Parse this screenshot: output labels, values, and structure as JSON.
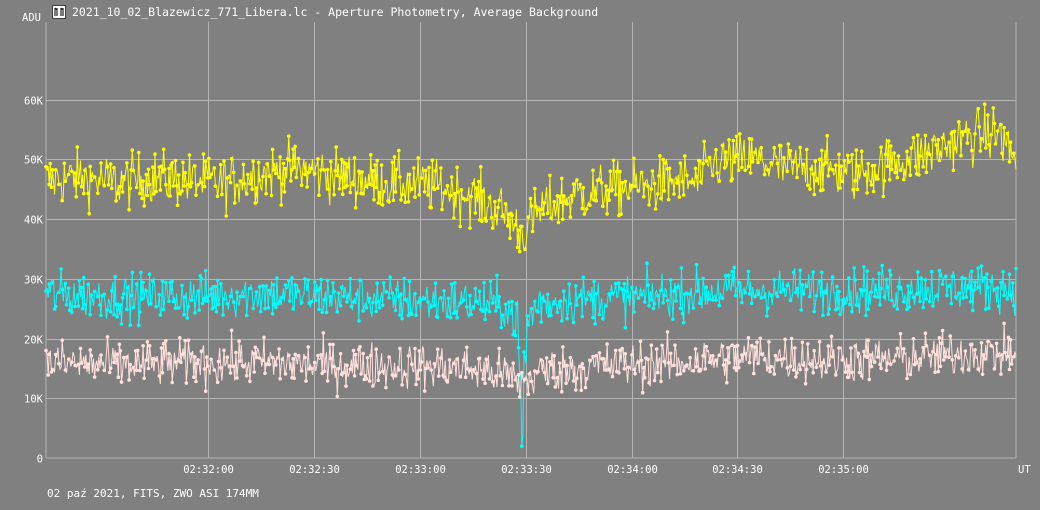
{
  "window": {
    "title": "2021_10_02_Blazewicz_771_Libera.lc - Aperture Photometry, Average Background",
    "footer": "02 paź 2021, FITS, ZWO ASI 174MM",
    "app_icon": "lightcurve-app-icon"
  },
  "colors": {
    "background": "#808080",
    "grid": "#b4b4b4",
    "text": "#ffffff",
    "series_yellow": "#ffff00",
    "series_cyan": "#00ffff",
    "series_pink": "#ffe0dc"
  },
  "chart_data": {
    "type": "line",
    "title": "2021_10_02_Blazewicz_771_Libera.lc - Aperture Photometry, Average Background",
    "xlabel": "UT",
    "ylabel": "ADU",
    "ylim": [
      0,
      73000
    ],
    "xlim": [
      "02:31:14",
      "02:35:49"
    ],
    "grid": true,
    "y_ticks": [
      {
        "value": 0,
        "label": "0"
      },
      {
        "value": 10000,
        "label": "10K"
      },
      {
        "value": 20000,
        "label": "20K"
      },
      {
        "value": 30000,
        "label": "30K"
      },
      {
        "value": 40000,
        "label": "40K"
      },
      {
        "value": 50000,
        "label": "50K"
      },
      {
        "value": 60000,
        "label": "60K"
      }
    ],
    "x_ticks": [
      {
        "value": "02:32:00",
        "label": "02:32:00"
      },
      {
        "value": "02:32:30",
        "label": "02:32:30"
      },
      {
        "value": "02:33:00",
        "label": "02:33:00"
      },
      {
        "value": "02:33:30",
        "label": "02:33:30"
      },
      {
        "value": "02:34:00",
        "label": "02:34:00"
      },
      {
        "value": "02:34:30",
        "label": "02:34:30"
      },
      {
        "value": "02:35:00",
        "label": "02:35:00"
      }
    ],
    "series": [
      {
        "color": "#ffff00",
        "x": [
          "02:31:14",
          "02:31:24",
          "02:31:34",
          "02:31:44",
          "02:31:54",
          "02:32:04",
          "02:32:14",
          "02:32:24",
          "02:32:34",
          "02:32:44",
          "02:32:54",
          "02:33:04",
          "02:33:14",
          "02:33:24",
          "02:33:29",
          "02:33:34",
          "02:33:44",
          "02:33:54",
          "02:34:04",
          "02:34:14",
          "02:34:18",
          "02:34:24",
          "02:34:34",
          "02:34:44",
          "02:34:54",
          "02:35:04",
          "02:35:14",
          "02:35:24",
          "02:35:34",
          "02:35:44",
          "02:35:49"
        ],
        "values": [
          46500,
          47000,
          46000,
          47000,
          46500,
          46000,
          47500,
          48500,
          47500,
          46500,
          46000,
          45500,
          44000,
          41000,
          37500,
          41500,
          44000,
          45000,
          45500,
          46500,
          46000,
          49500,
          50000,
          48500,
          48500,
          47500,
          49500,
          51000,
          53500,
          54500,
          50000
        ],
        "spread": 7000
      },
      {
        "color": "#00ffff",
        "x": [
          "02:31:14",
          "02:31:34",
          "02:31:54",
          "02:32:14",
          "02:32:34",
          "02:32:54",
          "02:33:14",
          "02:33:24",
          "02:33:29",
          "02:33:34",
          "02:33:44",
          "02:34:04",
          "02:34:24",
          "02:34:44",
          "02:35:04",
          "02:35:24",
          "02:35:49"
        ],
        "values": [
          27500,
          27000,
          27000,
          27500,
          27000,
          26500,
          26000,
          25500,
          22000,
          26000,
          26500,
          27000,
          28000,
          28000,
          28000,
          28500,
          28500
        ],
        "spread": 6000,
        "dip": {
          "x": "02:33:29",
          "value": 1000
        }
      },
      {
        "color": "#ffe0dc",
        "x": [
          "02:31:14",
          "02:31:34",
          "02:31:54",
          "02:32:14",
          "02:32:34",
          "02:32:54",
          "02:33:14",
          "02:33:24",
          "02:33:29",
          "02:33:34",
          "02:33:54",
          "02:34:14",
          "02:34:34",
          "02:34:54",
          "02:35:14",
          "02:35:34",
          "02:35:49"
        ],
        "values": [
          16000,
          15500,
          16000,
          16000,
          15500,
          15500,
          15000,
          14000,
          12500,
          14500,
          15500,
          16000,
          17000,
          16500,
          16500,
          17500,
          17500
        ],
        "spread": 6000
      }
    ]
  }
}
